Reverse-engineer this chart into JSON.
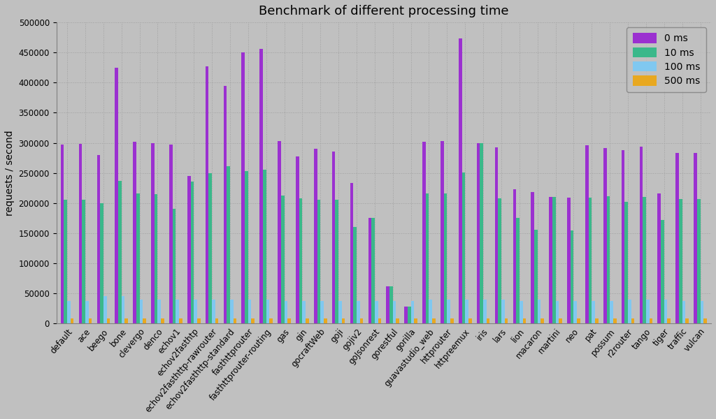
{
  "title": "Benchmark of different processing time",
  "ylabel": "requests / second",
  "categories": [
    "default",
    "ace",
    "beego",
    "bone",
    "clevergo",
    "denco",
    "echov1",
    "echov2fasthtp",
    "echov2fasthttp-rawrouter",
    "echov2fasthttp-standard",
    "fasthttprouter",
    "fasthttprouter-routing",
    "gas",
    "gin",
    "gocraftWeb",
    "goji",
    "gojiv2",
    "goJsonrest",
    "gorestful",
    "gorilla",
    "guavastudio_web",
    "httprouter",
    "httpreemux",
    "iris",
    "lars",
    "lion",
    "macaron",
    "martini",
    "neo",
    "pat",
    "possum",
    "r2router",
    "tango",
    "tiger",
    "traffic",
    "vulcan"
  ],
  "series": {
    "0 ms": [
      297000,
      298000,
      280000,
      425000,
      302000,
      300000,
      297000,
      245000,
      427000,
      395000,
      450000,
      456000,
      303000,
      277000,
      290000,
      285000,
      233000,
      175000,
      62000,
      28000,
      302000,
      303000,
      473000,
      300000,
      292000,
      223000,
      218000,
      210000,
      209000,
      296000,
      291000,
      288000,
      294000,
      216000,
      283000,
      283000
    ],
    "10 ms": [
      206000,
      206000,
      200000,
      237000,
      216000,
      215000,
      190000,
      236000,
      250000,
      261000,
      253000,
      256000,
      212000,
      208000,
      206000,
      205000,
      160000,
      175000,
      62000,
      28000,
      216000,
      216000,
      251000,
      299000,
      208000,
      175000,
      156000,
      210000,
      155000,
      209000,
      211000,
      202000,
      210000,
      172000,
      207000,
      207000
    ],
    "100 ms": [
      38000,
      38000,
      45000,
      45000,
      40000,
      40000,
      40000,
      40000,
      40000,
      40000,
      40000,
      40000,
      37000,
      37000,
      37000,
      37000,
      37000,
      37000,
      37000,
      37000,
      40000,
      40000,
      40000,
      40000,
      40000,
      37000,
      40000,
      37000,
      37000,
      37000,
      37000,
      40000,
      40000,
      40000,
      37000,
      37000
    ],
    "500 ms": [
      9000,
      9000,
      9000,
      9000,
      9000,
      9000,
      9000,
      9000,
      9000,
      9000,
      9000,
      9000,
      9000,
      9000,
      9000,
      9000,
      9000,
      9000,
      9000,
      9000,
      9000,
      9000,
      9000,
      9000,
      9000,
      9000,
      9000,
      9000,
      9000,
      9000,
      9000,
      9000,
      9000,
      9000,
      9000,
      9000
    ]
  },
  "colors": {
    "0 ms": "#9b30d0",
    "10 ms": "#3ab88a",
    "100 ms": "#80c8f0",
    "500 ms": "#e8a820"
  },
  "ylim": [
    0,
    500000
  ],
  "yticks": [
    0,
    50000,
    100000,
    150000,
    200000,
    250000,
    300000,
    350000,
    400000,
    450000,
    500000
  ],
  "background_color": "#c0c0c0",
  "plot_background": "#c0c0c0",
  "grid_color": "#a0a0a0",
  "bar_width": 0.18,
  "title_fontsize": 13,
  "tick_fontsize": 8.5,
  "label_fontsize": 10
}
